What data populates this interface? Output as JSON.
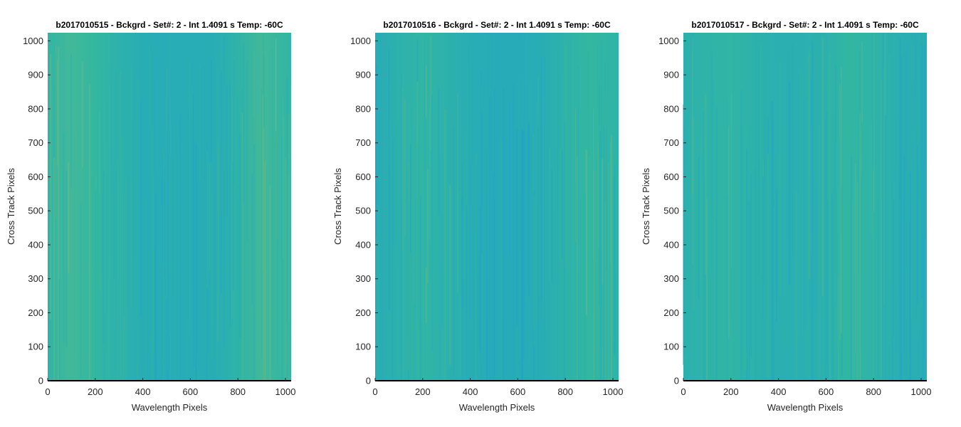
{
  "chart_data": [
    {
      "type": "heatmap",
      "title": "b2017010515 - Bckgrd - Set#: 2 - Int 1.4091 s Temp: -60C",
      "xlabel": "Wavelength Pixels",
      "ylabel": "Cross Track Pixels",
      "xlim": [
        0,
        1024
      ],
      "ylim": [
        0,
        1024
      ],
      "xticks": [
        0,
        200,
        400,
        600,
        800,
        1000
      ],
      "yticks": [
        0,
        100,
        200,
        300,
        400,
        500,
        600,
        700,
        800,
        900,
        1000
      ],
      "colormap": "parula",
      "column_profile": {
        "x": [
          0,
          100,
          200,
          300,
          400,
          500,
          600,
          700,
          800,
          900,
          1024
        ],
        "level": [
          0.45,
          0.55,
          0.5,
          0.38,
          0.3,
          0.28,
          0.28,
          0.3,
          0.42,
          0.55,
          0.45
        ]
      }
    },
    {
      "type": "heatmap",
      "title": "b2017010516 - Bckgrd - Set#: 2 - Int 1.4091 s Temp: -60C",
      "xlabel": "Wavelength Pixels",
      "ylabel": "Cross Track Pixels",
      "xlim": [
        0,
        1024
      ],
      "ylim": [
        0,
        1024
      ],
      "xticks": [
        0,
        200,
        400,
        600,
        800,
        1000
      ],
      "yticks": [
        0,
        100,
        200,
        300,
        400,
        500,
        600,
        700,
        800,
        900,
        1000
      ],
      "colormap": "parula",
      "column_profile": {
        "x": [
          0,
          100,
          200,
          300,
          400,
          500,
          600,
          700,
          800,
          900,
          1024
        ],
        "level": [
          0.28,
          0.38,
          0.45,
          0.38,
          0.3,
          0.26,
          0.26,
          0.3,
          0.4,
          0.5,
          0.42
        ]
      }
    },
    {
      "type": "heatmap",
      "title": "b2017010517 - Bckgrd - Set#: 2 - Int 1.4091 s Temp: -60C",
      "xlabel": "Wavelength Pixels",
      "ylabel": "Cross Track Pixels",
      "xlim": [
        0,
        1024
      ],
      "ylim": [
        0,
        1024
      ],
      "xticks": [
        0,
        200,
        400,
        600,
        800,
        1000
      ],
      "yticks": [
        0,
        100,
        200,
        300,
        400,
        500,
        600,
        700,
        800,
        900,
        1000
      ],
      "colormap": "parula",
      "column_profile": {
        "x": [
          0,
          100,
          200,
          300,
          400,
          500,
          600,
          700,
          800,
          900,
          1024
        ],
        "level": [
          0.35,
          0.42,
          0.45,
          0.38,
          0.33,
          0.33,
          0.38,
          0.48,
          0.42,
          0.33,
          0.3
        ]
      }
    }
  ],
  "colors": {
    "low": "#1b9ed3",
    "mid": "#33b7a0",
    "high": "#c8c05a",
    "baseline": "#000000"
  }
}
